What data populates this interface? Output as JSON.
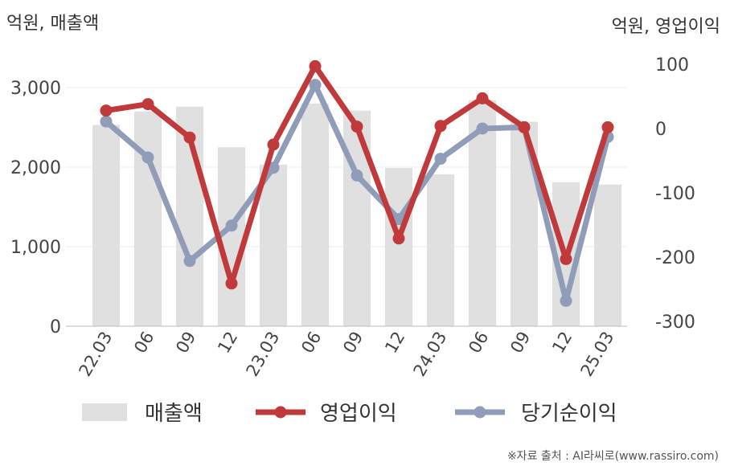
{
  "chart_data": {
    "type": "bar+line",
    "title": "",
    "left_axis": {
      "unit_label": "억원, 매출액",
      "ylim": [
        0,
        3500
      ],
      "ticks": [
        0,
        1000,
        2000,
        3000
      ],
      "tick_labels": [
        "0",
        "1,000",
        "2,000",
        "3,000"
      ]
    },
    "right_axis": {
      "unit_label": "억원, 영업이익",
      "ylim": [
        -300,
        100
      ],
      "ticks": [
        -300,
        -200,
        -100,
        0,
        100
      ],
      "tick_labels": [
        "-300",
        "-200",
        "-100",
        "0",
        "100"
      ]
    },
    "categories": [
      "22.03",
      "06",
      "09",
      "12",
      "23.03",
      "06",
      "09",
      "12",
      "24.03",
      "06",
      "09",
      "12",
      "25.03"
    ],
    "series": [
      {
        "name": "매출액",
        "type": "bar",
        "axis": "left",
        "color": "#e0e0e0",
        "values": [
          2530,
          2700,
          2760,
          2250,
          2030,
          2800,
          2710,
          1990,
          1910,
          2840,
          2570,
          1810,
          1780
        ]
      },
      {
        "name": "영업이익",
        "type": "line",
        "axis": "right",
        "color": "#c0393b",
        "values": [
          28,
          38,
          -14,
          -241,
          -25,
          97,
          3,
          -171,
          4,
          47,
          2,
          -203,
          2
        ]
      },
      {
        "name": "당기순이익",
        "type": "line",
        "axis": "right",
        "color": "#8f9db8",
        "values": [
          11,
          -45,
          -206,
          -151,
          -61,
          68,
          -73,
          -141,
          -47,
          0,
          2,
          -268,
          -13
        ]
      }
    ],
    "grid": true,
    "legend_position": "bottom",
    "source": "※자료 출처 : AI라씨로(www.rassiro.com)"
  }
}
